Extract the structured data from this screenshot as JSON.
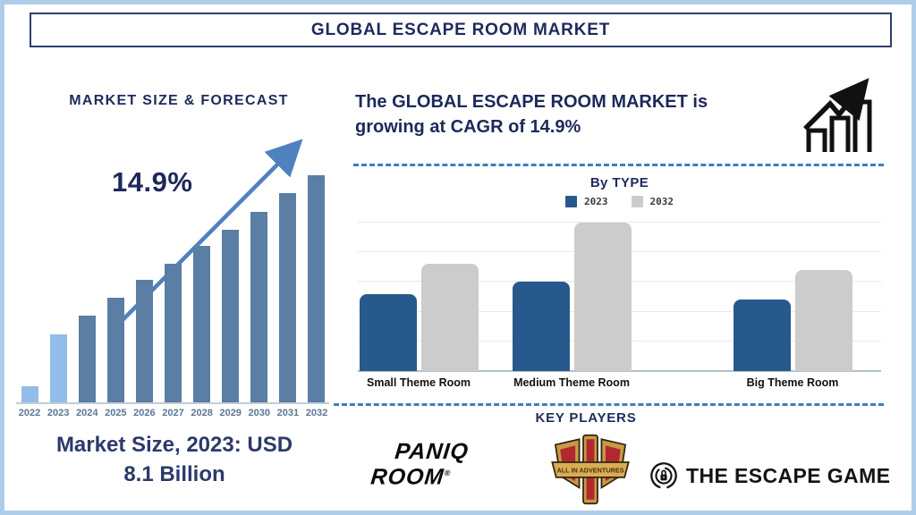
{
  "header": {
    "title": "GLOBAL ESCAPE ROOM MARKET"
  },
  "left_panel": {
    "heading": "MARKET SIZE & FORECAST",
    "cagr_label": "14.9%",
    "market_size_line1": "Market Size, 2023: USD",
    "market_size_line2": "8.1 Billion"
  },
  "right_panel": {
    "growth_line1": "The GLOBAL ESCAPE ROOM MARKET is",
    "growth_line2": "growing at CAGR of 14.9%",
    "by_type_heading": "By TYPE",
    "key_players_heading": "KEY PLAYERS",
    "logos": {
      "paniq_line1": "PANIQ",
      "paniq_line2": "ROOM",
      "paniq_reg": "®",
      "all_in_adventures": "ALL IN ADVENTURES",
      "escape_game": "THE ESCAPE GAME"
    }
  },
  "colors": {
    "navy_text": "#1f2a5c",
    "outer_border": "#aecdeb",
    "dashed_separator": "#3f7cc0",
    "trend_arrow": "#4e81bd",
    "forecast_bar": "#5b7ea4",
    "forecast_bar_highlight": "#92bde8",
    "bytype_2023": "#27598c",
    "bytype_2032": "#cccccc"
  },
  "chart_data": [
    {
      "id": "market_size_forecast",
      "type": "bar",
      "title": "MARKET SIZE & FORECAST",
      "categories": [
        "2022",
        "2023",
        "2024",
        "2025",
        "2026",
        "2027",
        "2028",
        "2029",
        "2030",
        "2031",
        "2032"
      ],
      "values_relative_pct": [
        7,
        30,
        38,
        46,
        54,
        61,
        69,
        76,
        84,
        92,
        100
      ],
      "highlight_categories": [
        "2022",
        "2023"
      ],
      "bar_color": "#5b7ea4",
      "highlight_color": "#92bde8",
      "annotations": {
        "cagr": "14.9%",
        "market_size_2023": "USD 8.1 Billion",
        "trend_arrow": "up"
      },
      "y_axis_labels": false,
      "grid": false
    },
    {
      "id": "by_type",
      "type": "grouped_bar",
      "title": "By TYPE",
      "categories": [
        "Small Theme Room",
        "Medium Theme Room",
        "Big Theme Room"
      ],
      "series": [
        {
          "name": "2023",
          "color": "#27598c",
          "values_relative_pct": [
            52,
            60,
            48
          ]
        },
        {
          "name": "2032",
          "color": "#cccccc",
          "values_relative_pct": [
            72,
            100,
            68
          ]
        }
      ],
      "legend_position": "top",
      "grid": true,
      "gridline_count": 5,
      "y_axis_labels": false
    }
  ]
}
